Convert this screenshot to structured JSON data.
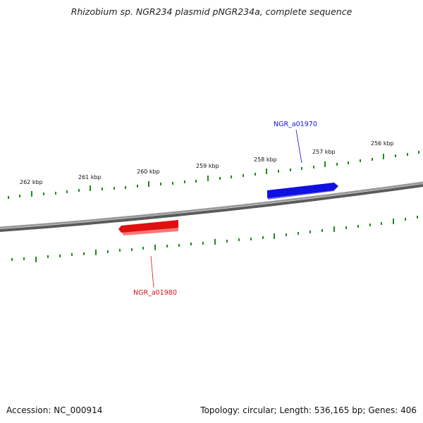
{
  "title": "Rhizobium sp. NGR234 plasmid pNGR234a, complete sequence",
  "footer": {
    "accession": "Accession: NC_000914",
    "summary": "Topology: circular; Length: 536,165 bp; Genes: 406"
  },
  "scale_labels": [
    "262 kbp",
    "261 kbp",
    "260 kbp",
    "259 kbp",
    "258 kbp",
    "257 kbp",
    "256 kbp"
  ],
  "genes": [
    {
      "name": "NGR_a01970",
      "strand": "forward",
      "color": "#1010e0"
    },
    {
      "name": "NGR_a01980",
      "strand": "reverse",
      "color": "#e01010"
    }
  ],
  "colors": {
    "backbone": "#8a8a8a",
    "tick": "#1f8a1f",
    "forward_gene": "#1010e0",
    "reverse_gene": "#e01010"
  }
}
